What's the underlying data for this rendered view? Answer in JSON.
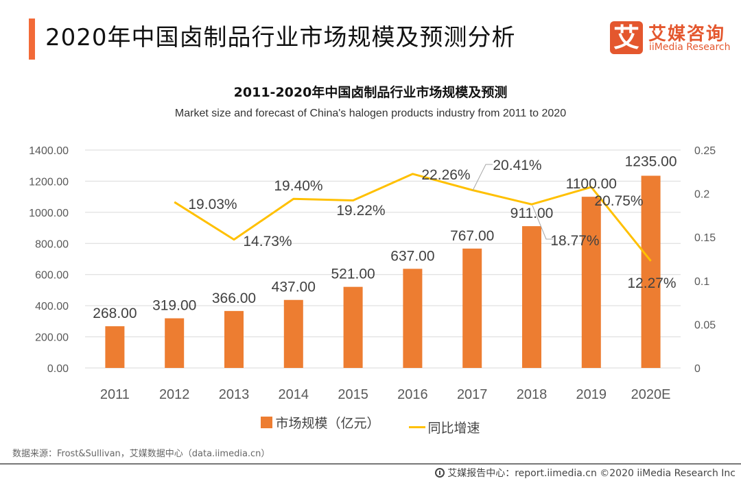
{
  "header": {
    "title": "2020年中国卤制品行业市场规模及预测分析",
    "logo_glyph": "艾",
    "logo_cn": "艾媒咨询",
    "logo_en": "iiMedia Research",
    "accent_color": "#f26a38"
  },
  "chart_data": {
    "type": "bar",
    "title": "2011-2020年中国卤制品行业市场规模及预测",
    "subtitle": "Market size and forecast of China's halogen products industry from 2011 to 2020",
    "categories": [
      "2011",
      "2012",
      "2013",
      "2014",
      "2015",
      "2016",
      "2017",
      "2018",
      "2019",
      "2020E"
    ],
    "series": [
      {
        "name": "市场规模（亿元）",
        "type": "bar",
        "axis": "left",
        "color": "#ed7d31",
        "values": [
          268.0,
          319.0,
          366.0,
          437.0,
          521.0,
          637.0,
          767.0,
          911.0,
          1100.0,
          1235.0
        ],
        "labels": [
          "268.00",
          "319.00",
          "366.00",
          "437.00",
          "521.00",
          "637.00",
          "767.00",
          "911.00",
          "1100.00",
          "1235.00"
        ]
      },
      {
        "name": "同比增速",
        "type": "line",
        "axis": "right",
        "color": "#ffc000",
        "values": [
          null,
          0.1903,
          0.1473,
          0.194,
          0.1922,
          0.2226,
          0.2041,
          0.1877,
          0.2075,
          0.1227
        ],
        "labels": [
          null,
          "19.03%",
          "14.73%",
          "19.40%",
          "19.22%",
          "22.26%",
          "20.41%",
          "18.77%",
          "20.75%",
          "12.27%"
        ]
      }
    ],
    "y_left": {
      "range": [
        0,
        1400
      ],
      "ticks": [
        "0.00",
        "200.00",
        "400.00",
        "600.00",
        "800.00",
        "1000.00",
        "1200.00",
        "1400.00"
      ]
    },
    "y_right": {
      "range": [
        0,
        0.25
      ],
      "ticks": [
        "0",
        "0.05",
        "0.1",
        "0.15",
        "0.2",
        "0.25"
      ]
    },
    "grid": true,
    "legend_position": "bottom"
  },
  "legend": {
    "bar_label": "市场规模（亿元）",
    "line_label": "同比增速"
  },
  "footer": {
    "source": "数据来源：Frost&Sullivan，艾媒数据中心（data.iimedia.cn）",
    "copyright": "艾媒报告中心：report.iimedia.cn  ©2020  iiMedia Research Inc"
  }
}
